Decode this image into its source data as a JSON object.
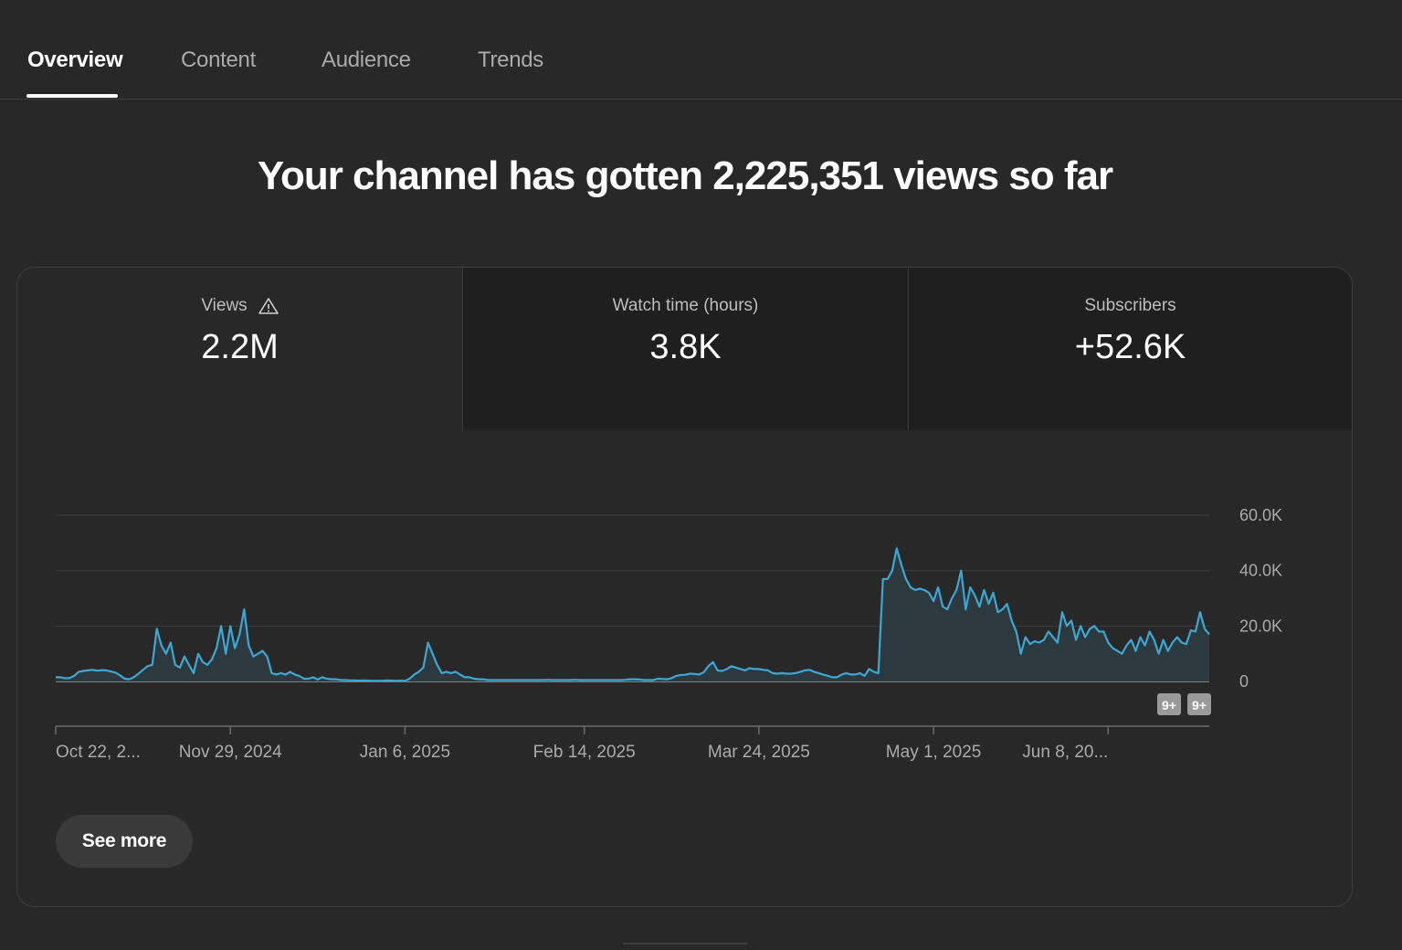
{
  "tabs": [
    {
      "label": "Overview",
      "active": true
    },
    {
      "label": "Content",
      "active": false
    },
    {
      "label": "Audience",
      "active": false
    },
    {
      "label": "Trends",
      "active": false
    }
  ],
  "headline": "Your channel has gotten 2,225,351 views so far",
  "metrics": [
    {
      "label": "Views",
      "value": "2.2M",
      "icon": "warning-icon"
    },
    {
      "label": "Watch time (hours)",
      "value": "3.8K"
    },
    {
      "label": "Subscribers",
      "value": "+52.6K"
    }
  ],
  "chart_data": {
    "type": "area",
    "title": "",
    "xlabel": "",
    "ylabel": "",
    "ylim": [
      0,
      60000
    ],
    "grid": true,
    "yticks": [
      0,
      20000,
      40000,
      60000
    ],
    "ytick_labels": [
      "0",
      "20.0K",
      "40.0K",
      "60.0K"
    ],
    "x_tick_labels": [
      "Oct 22, 2...",
      "Nov 29, 2024",
      "Jan 6, 2025",
      "Feb 14, 2025",
      "Mar 24, 2025",
      "May 1, 2025",
      "Jun 8, 20..."
    ],
    "x_tick_days": [
      0,
      38,
      76,
      115,
      153,
      191,
      229
    ],
    "series": [
      {
        "values": [
          1500,
          1500,
          1200,
          1200,
          2000,
          3500,
          3800,
          4000,
          4200,
          3900,
          4100,
          4000,
          3600,
          3200,
          2200,
          1000,
          800,
          1500,
          2800,
          4200,
          5500,
          6000,
          19000,
          13000,
          10000,
          14000,
          6000,
          5000,
          9000,
          6000,
          3000,
          10000,
          7000,
          6000,
          8000,
          12000,
          20000,
          10000,
          20000,
          12000,
          17000,
          26000,
          13000,
          9000,
          10000,
          11000,
          9000,
          3000,
          2500,
          3000,
          2500,
          3500,
          2500,
          2000,
          1000,
          1000,
          1500,
          700,
          1500,
          1000,
          800,
          800,
          500,
          500,
          400,
          400,
          300,
          400,
          300,
          200,
          200,
          200,
          400,
          300,
          200,
          300,
          200,
          1000,
          2500,
          3500,
          5000,
          14000,
          10000,
          6000,
          3000,
          3500,
          3000,
          3500,
          2500,
          1500,
          1500,
          1000,
          800,
          800,
          500,
          500,
          500,
          500,
          500,
          500,
          500,
          500,
          500,
          500,
          500,
          500,
          500,
          600,
          500,
          500,
          500,
          500,
          500,
          600,
          500,
          500,
          500,
          500,
          500,
          500,
          500,
          500,
          500,
          500,
          600,
          800,
          800,
          700,
          500,
          500,
          500,
          1000,
          900,
          800,
          1200,
          2000,
          2300,
          2400,
          2800,
          2700,
          2500,
          3300,
          5500,
          7000,
          4000,
          3800,
          4500,
          5500,
          5000,
          4500,
          4000,
          4800,
          4500,
          4500,
          4200,
          4000,
          3000,
          2800,
          3000,
          2800,
          2800,
          3000,
          3500,
          4000,
          4200,
          3500,
          3000,
          2500,
          2000,
          1500,
          1500,
          2500,
          3000,
          2500,
          2500,
          3000,
          2000,
          4500,
          3500,
          3000,
          37000,
          37000,
          40000,
          48000,
          42000,
          37000,
          34000,
          33000,
          33500,
          33000,
          32000,
          29000,
          34000,
          27000,
          26000,
          30000,
          33000,
          40000,
          26000,
          34000,
          31000,
          27000,
          33000,
          28000,
          32000,
          25000,
          26000,
          28000,
          22000,
          18000,
          10000,
          16000,
          13500,
          14500,
          14000,
          15000,
          18000,
          16000,
          14000,
          25000,
          20000,
          22000,
          15000,
          20000,
          16000,
          19000,
          20000,
          18000,
          18000,
          14000,
          12000,
          11000,
          10000,
          13000,
          15000,
          11000,
          16000,
          13000,
          18000,
          15000,
          10000,
          15000,
          11000,
          14000,
          16000,
          14000,
          13500,
          18500,
          18000,
          25000,
          19000,
          17000
        ]
      }
    ],
    "line_color": "#3ea6d3",
    "fill_color": "#2c3a40",
    "notification_badges": [
      "9+",
      "9+"
    ]
  },
  "see_more_label": "See more"
}
